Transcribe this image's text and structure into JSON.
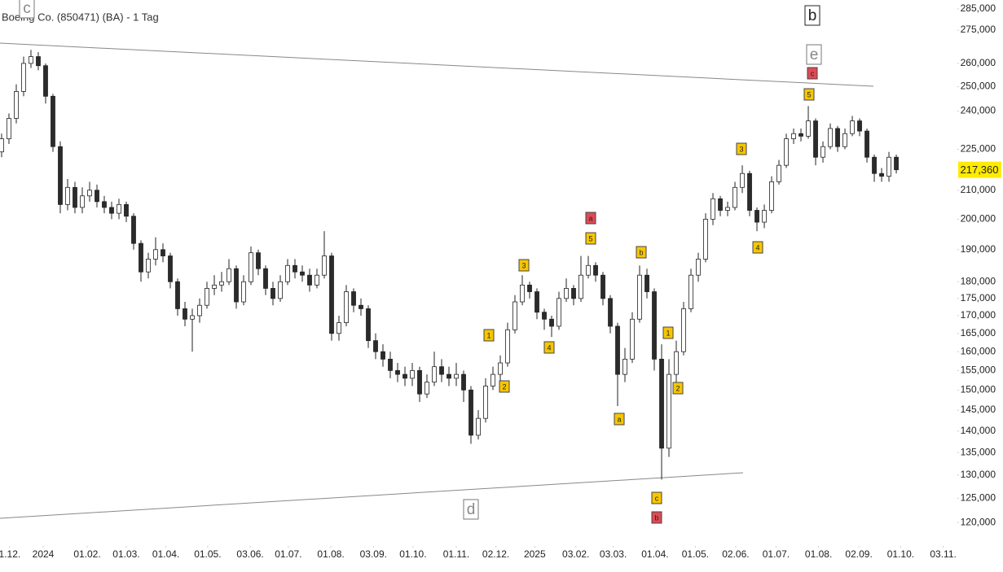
{
  "chart_data": {
    "type": "candlestick",
    "title": "Boeing Co. (850471) (BA) - 1 Tag",
    "log_scale": true,
    "up_color": "#ffffff",
    "down_color": "#2b2b2b",
    "ylim": [
      116300,
      289300
    ],
    "yticks": [
      {
        "value": 285000,
        "label": "285,000"
      },
      {
        "value": 275000,
        "label": "275,000"
      },
      {
        "value": 260000,
        "label": "260,000"
      },
      {
        "value": 250000,
        "label": "250,000"
      },
      {
        "value": 240000,
        "label": "240,000"
      },
      {
        "value": 225000,
        "label": "225,000"
      },
      {
        "value": 210000,
        "label": "210,000"
      },
      {
        "value": 200000,
        "label": "200,000"
      },
      {
        "value": 190000,
        "label": "190,000"
      },
      {
        "value": 180000,
        "label": "180,000"
      },
      {
        "value": 175000,
        "label": "175,000"
      },
      {
        "value": 170000,
        "label": "170,000"
      },
      {
        "value": 165000,
        "label": "165,000"
      },
      {
        "value": 160000,
        "label": "160,000"
      },
      {
        "value": 155000,
        "label": "155,000"
      },
      {
        "value": 150000,
        "label": "150,000"
      },
      {
        "value": 145000,
        "label": "145,000"
      },
      {
        "value": 140000,
        "label": "140,000"
      },
      {
        "value": 135000,
        "label": "135,000"
      },
      {
        "value": 130000,
        "label": "130,000"
      },
      {
        "value": 125000,
        "label": "125,000"
      },
      {
        "value": 120000,
        "label": "120,000"
      }
    ],
    "xlim": [
      -0.22,
      130.33
    ],
    "xticks": [
      {
        "value": 1.1,
        "label": "1.12."
      },
      {
        "value": 5.67,
        "label": "2024"
      },
      {
        "value": 11.67,
        "label": "01.02."
      },
      {
        "value": 17,
        "label": "01.03."
      },
      {
        "value": 22.4,
        "label": "01.04."
      },
      {
        "value": 28.1,
        "label": "01.05."
      },
      {
        "value": 33.9,
        "label": "03.06."
      },
      {
        "value": 39.1,
        "label": "01.07."
      },
      {
        "value": 44.9,
        "label": "01.08."
      },
      {
        "value": 50.7,
        "label": "03.09."
      },
      {
        "value": 56.1,
        "label": "01.10."
      },
      {
        "value": 62,
        "label": "01.11."
      },
      {
        "value": 67.4,
        "label": "02.12."
      },
      {
        "value": 72.7,
        "label": "2025"
      },
      {
        "value": 78.3,
        "label": "03.02."
      },
      {
        "value": 83.4,
        "label": "03.03."
      },
      {
        "value": 89.1,
        "label": "01.04."
      },
      {
        "value": 94.6,
        "label": "01.05."
      },
      {
        "value": 100.1,
        "label": "02.06."
      },
      {
        "value": 105.6,
        "label": "01.07."
      },
      {
        "value": 111.4,
        "label": "01.08."
      },
      {
        "value": 116.9,
        "label": "02.09."
      },
      {
        "value": 122.6,
        "label": "01.10."
      },
      {
        "value": 128.4,
        "label": "03.11."
      }
    ],
    "ohlc": [
      [
        224000,
        231000,
        222000,
        229000
      ],
      [
        229000,
        239000,
        227000,
        237000
      ],
      [
        237000,
        251000,
        235000,
        248000
      ],
      [
        248000,
        263000,
        246000,
        260000
      ],
      [
        260000,
        266000,
        258000,
        263000
      ],
      [
        263000,
        265000,
        257000,
        259000
      ],
      [
        259000,
        260000,
        243000,
        246000
      ],
      [
        246000,
        247000,
        224000,
        226000
      ],
      [
        226000,
        228000,
        202000,
        205000
      ],
      [
        205000,
        214000,
        203000,
        211000
      ],
      [
        211000,
        213000,
        202000,
        204000
      ],
      [
        204000,
        211000,
        202000,
        208000
      ],
      [
        208000,
        213000,
        206000,
        210000
      ],
      [
        210000,
        212000,
        204000,
        206000
      ],
      [
        206000,
        208000,
        202000,
        204000
      ],
      [
        204000,
        206000,
        200000,
        202000
      ],
      [
        202000,
        207000,
        200000,
        205000
      ],
      [
        205000,
        206000,
        199000,
        201000
      ],
      [
        201000,
        202000,
        190000,
        192000
      ],
      [
        192000,
        193000,
        180000,
        183000
      ],
      [
        183000,
        189000,
        181000,
        187000
      ],
      [
        187000,
        194000,
        185000,
        190000
      ],
      [
        190000,
        192000,
        186000,
        188000
      ],
      [
        188000,
        189000,
        178000,
        180000
      ],
      [
        180000,
        181000,
        170000,
        172000
      ],
      [
        172000,
        174000,
        167000,
        169000
      ],
      [
        169000,
        172000,
        160000,
        170000
      ],
      [
        170000,
        175000,
        168000,
        173000
      ],
      [
        173000,
        180000,
        172000,
        178000
      ],
      [
        178000,
        182000,
        176000,
        179000
      ],
      [
        179000,
        183000,
        177000,
        180000
      ],
      [
        180000,
        187000,
        179000,
        184000
      ],
      [
        184000,
        185000,
        172000,
        174000
      ],
      [
        174000,
        182000,
        173000,
        180000
      ],
      [
        180000,
        191000,
        179000,
        189000
      ],
      [
        189000,
        190000,
        182000,
        184000
      ],
      [
        184000,
        185000,
        176000,
        178000
      ],
      [
        178000,
        180000,
        173000,
        175000
      ],
      [
        175000,
        182000,
        174000,
        180000
      ],
      [
        180000,
        187000,
        179000,
        185000
      ],
      [
        185000,
        187000,
        181000,
        183000
      ],
      [
        183000,
        185000,
        180000,
        182000
      ],
      [
        182000,
        184000,
        177000,
        179000
      ],
      [
        179000,
        184000,
        178000,
        182000
      ],
      [
        182000,
        196000,
        181000,
        188000
      ],
      [
        188000,
        189000,
        163000,
        165000
      ],
      [
        165000,
        170000,
        163000,
        168000
      ],
      [
        168000,
        179000,
        167000,
        177000
      ],
      [
        177000,
        178000,
        171000,
        173000
      ],
      [
        173000,
        175000,
        170000,
        172000
      ],
      [
        172000,
        173000,
        161000,
        163000
      ],
      [
        163000,
        165000,
        158000,
        160000
      ],
      [
        160000,
        162000,
        156000,
        158000
      ],
      [
        158000,
        160000,
        153000,
        155000
      ],
      [
        155000,
        157000,
        152000,
        154000
      ],
      [
        154000,
        156000,
        151000,
        153000
      ],
      [
        153000,
        157000,
        151000,
        155000
      ],
      [
        155000,
        156000,
        147000,
        149000
      ],
      [
        149000,
        154000,
        148000,
        152000
      ],
      [
        152000,
        160000,
        151000,
        156000
      ],
      [
        156000,
        158000,
        152000,
        154000
      ],
      [
        154000,
        156000,
        151000,
        153000
      ],
      [
        153000,
        157000,
        151000,
        154000
      ],
      [
        154000,
        155000,
        147000,
        150000
      ],
      [
        150000,
        151000,
        137000,
        139000
      ],
      [
        139000,
        145000,
        138000,
        143000
      ],
      [
        143000,
        153000,
        142000,
        151000
      ],
      [
        151000,
        156000,
        150000,
        154000
      ],
      [
        154000,
        159000,
        152000,
        157000
      ],
      [
        157000,
        168000,
        156000,
        166000
      ],
      [
        166000,
        176000,
        165000,
        174000
      ],
      [
        174000,
        182000,
        173000,
        179000
      ],
      [
        179000,
        180000,
        175000,
        177000
      ],
      [
        177000,
        178000,
        169000,
        171000
      ],
      [
        171000,
        172000,
        166000,
        169000
      ],
      [
        169000,
        170000,
        164000,
        167000
      ],
      [
        167000,
        177000,
        166000,
        175000
      ],
      [
        175000,
        181000,
        174000,
        178000
      ],
      [
        178000,
        179000,
        173000,
        175000
      ],
      [
        175000,
        188000,
        174000,
        182000
      ],
      [
        182000,
        188000,
        181000,
        185000
      ],
      [
        185000,
        186000,
        180000,
        182000
      ],
      [
        182000,
        183000,
        173000,
        175000
      ],
      [
        175000,
        176000,
        165000,
        167000
      ],
      [
        167000,
        168000,
        146000,
        154000
      ],
      [
        154000,
        161000,
        152000,
        158000
      ],
      [
        158000,
        171000,
        157000,
        169000
      ],
      [
        169000,
        185000,
        168000,
        182000
      ],
      [
        182000,
        184000,
        175000,
        177000
      ],
      [
        177000,
        178000,
        155000,
        158000
      ],
      [
        158000,
        162000,
        129000,
        136000
      ],
      [
        136000,
        158000,
        134000,
        154000
      ],
      [
        154000,
        163000,
        152000,
        160000
      ],
      [
        160000,
        174000,
        159000,
        172000
      ],
      [
        172000,
        184000,
        171000,
        182000
      ],
      [
        182000,
        189000,
        180000,
        187000
      ],
      [
        187000,
        202000,
        186000,
        200000
      ],
      [
        200000,
        209000,
        198000,
        207000
      ],
      [
        207000,
        208000,
        201000,
        203000
      ],
      [
        203000,
        206000,
        201000,
        204000
      ],
      [
        204000,
        213000,
        203000,
        211000
      ],
      [
        211000,
        219000,
        209000,
        216000
      ],
      [
        216000,
        217000,
        201000,
        203000
      ],
      [
        203000,
        204000,
        196000,
        199000
      ],
      [
        199000,
        205000,
        197000,
        203000
      ],
      [
        203000,
        215000,
        202000,
        213000
      ],
      [
        213000,
        221000,
        212000,
        219000
      ],
      [
        219000,
        231000,
        218000,
        229000
      ],
      [
        229000,
        233000,
        227000,
        231000
      ],
      [
        231000,
        233000,
        228000,
        230000
      ],
      [
        230000,
        242000,
        229000,
        236000
      ],
      [
        236000,
        237000,
        219000,
        222000
      ],
      [
        222000,
        228000,
        220000,
        226000
      ],
      [
        226000,
        235000,
        225000,
        233000
      ],
      [
        233000,
        234000,
        224000,
        226000
      ],
      [
        226000,
        233000,
        225000,
        231000
      ],
      [
        231000,
        238000,
        230000,
        236000
      ],
      [
        236000,
        237000,
        230000,
        232000
      ],
      [
        232000,
        233000,
        220000,
        222000
      ],
      [
        222000,
        223000,
        213000,
        216000
      ],
      [
        216000,
        218000,
        213000,
        215000
      ],
      [
        215000,
        224000,
        213000,
        222000
      ],
      [
        222000,
        223000,
        216000,
        217360
      ]
    ],
    "last_price": {
      "value": 217360,
      "label": "217,360"
    },
    "annotations": [
      {
        "text": "c",
        "style": "gray-box"
      },
      {
        "text": "b",
        "style": "box"
      },
      {
        "text": "e",
        "style": "gray-box"
      },
      {
        "text": "c",
        "style": "red"
      },
      {
        "text": "5",
        "style": "yellow"
      },
      {
        "text": "3",
        "style": "yellow"
      },
      {
        "text": "4",
        "style": "yellow"
      },
      {
        "text": "a",
        "style": "red"
      },
      {
        "text": "5",
        "style": "yellow"
      },
      {
        "text": "3",
        "style": "yellow"
      },
      {
        "text": "1",
        "style": "yellow"
      },
      {
        "text": "4",
        "style": "yellow"
      },
      {
        "text": "2",
        "style": "yellow"
      },
      {
        "text": "b",
        "style": "yellow"
      },
      {
        "text": "a",
        "style": "yellow"
      },
      {
        "text": "1",
        "style": "yellow"
      },
      {
        "text": "2",
        "style": "yellow"
      },
      {
        "text": "c",
        "style": "yellow"
      },
      {
        "text": "b",
        "style": "red"
      },
      {
        "text": "d",
        "style": "gray-box"
      }
    ]
  }
}
